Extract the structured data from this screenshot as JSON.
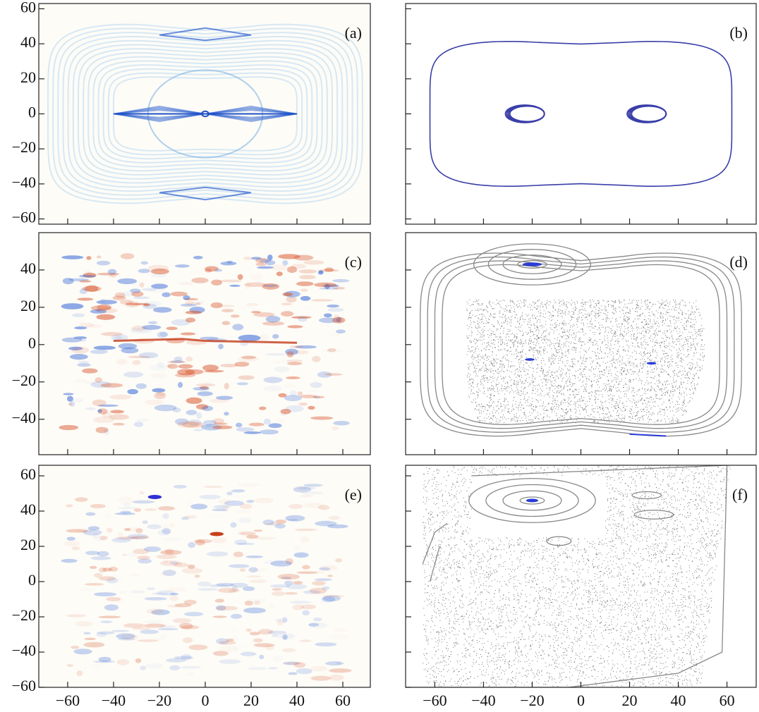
{
  "chart_data": [
    {
      "type": "heatmap",
      "label": "(a)",
      "xlim": [
        -72.6,
        72
      ],
      "ylim": [
        -63,
        63
      ],
      "yticks": [
        {
          "value": -60,
          "label": "−60"
        },
        {
          "value": -40,
          "label": "−40"
        },
        {
          "value": -20,
          "label": "−20"
        },
        0,
        20,
        40,
        60
      ]
    },
    {
      "type": "scatter",
      "label": "(b)",
      "xlim": [
        -72,
        72
      ],
      "ylim": [
        -63,
        63
      ]
    },
    {
      "type": "heatmap",
      "label": "(c)",
      "xlim": [
        -72.6,
        72
      ],
      "ylim": [
        -59,
        60
      ],
      "yticks": [
        {
          "value": -40,
          "label": "−40"
        },
        {
          "value": -20,
          "label": "−20"
        },
        0,
        20,
        40
      ]
    },
    {
      "type": "scatter",
      "label": "(d)",
      "xlim": [
        -72,
        72
      ],
      "ylim": [
        -59,
        60
      ]
    },
    {
      "type": "heatmap",
      "label": "(e)",
      "xlim": [
        -72.6,
        72
      ],
      "ylim": [
        -60,
        66
      ],
      "yticks": [
        {
          "value": -60,
          "label": "−60"
        },
        {
          "value": -40,
          "label": "−40"
        },
        {
          "value": -20,
          "label": "−20"
        },
        0,
        20,
        40,
        60
      ],
      "xticks": [
        {
          "value": -60,
          "label": "−60"
        },
        {
          "value": -40,
          "label": "−40"
        },
        {
          "value": -20,
          "label": "−20"
        },
        0,
        20,
        40,
        60
      ]
    },
    {
      "type": "scatter",
      "label": "(f)",
      "xlim": [
        -72,
        72
      ],
      "ylim": [
        -60,
        66
      ],
      "xticks": [
        {
          "value": -60,
          "label": "−60"
        },
        {
          "value": -40,
          "label": "−40"
        },
        {
          "value": -20,
          "label": "−20"
        },
        0,
        20,
        40,
        60
      ]
    }
  ]
}
